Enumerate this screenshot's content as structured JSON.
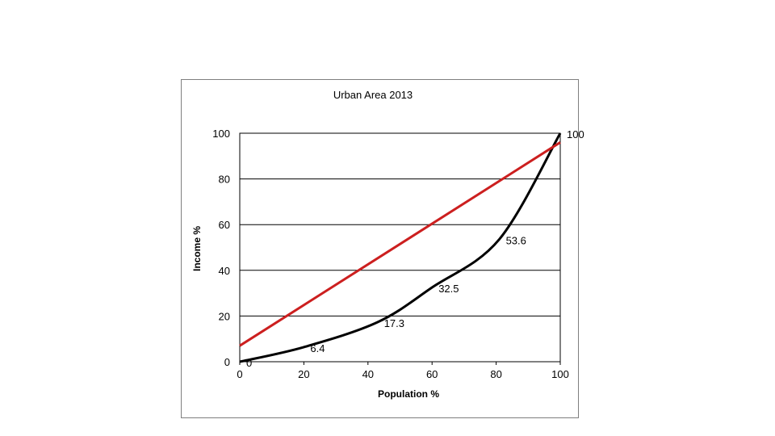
{
  "chart_data": {
    "type": "line",
    "title": "Urban Area 2013",
    "xlabel": "Population %",
    "ylabel": "Income %",
    "xlim": [
      0,
      100
    ],
    "ylim": [
      0,
      100
    ],
    "x_ticks": [
      "0",
      "20",
      "40",
      "60",
      "80",
      "100"
    ],
    "y_ticks": [
      "0",
      "20",
      "40",
      "60",
      "80",
      "100"
    ],
    "grid": "horizontal",
    "legend": "none",
    "series": [
      {
        "color": "#000000",
        "points": [
          {
            "x": 0,
            "y": 0
          },
          {
            "x": 20,
            "y": 6.4
          },
          {
            "x": 43,
            "y": 17.3
          },
          {
            "x": 60,
            "y": 32.5
          },
          {
            "x": 81,
            "y": 53.6
          },
          {
            "x": 100,
            "y": 100
          }
        ],
        "data_labels": [
          "0",
          "6.4",
          "17.3",
          "32.5",
          "53.6",
          "100"
        ]
      },
      {
        "color": "#cc1f1f",
        "points": [
          {
            "x": 0,
            "y": 7
          },
          {
            "x": 100,
            "y": 96
          }
        ]
      }
    ]
  }
}
